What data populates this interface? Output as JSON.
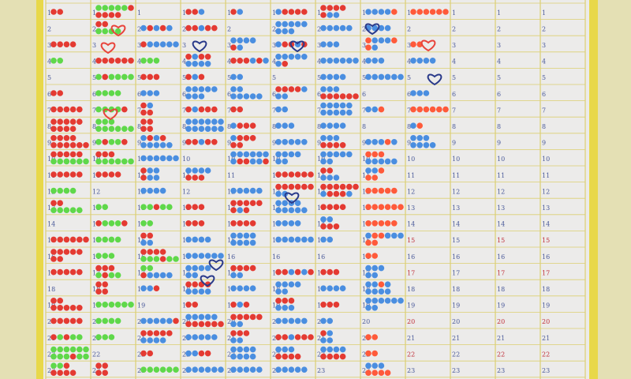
{
  "row_numbers": [
    1,
    2,
    3,
    4,
    5,
    6,
    7,
    8,
    9,
    10,
    11,
    12,
    13,
    14,
    15,
    16,
    17,
    18,
    19,
    20,
    21,
    22,
    23
  ]
}
